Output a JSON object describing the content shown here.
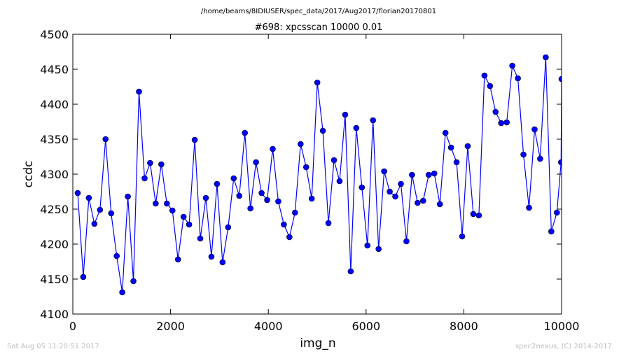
{
  "chart_data": {
    "type": "line",
    "subtitle": "/home/beams/8IDIUSER/spec_data/2017/Aug2017/florian20170801",
    "title": "#698: xpcsscan 10000 0.01",
    "xlabel": "img_n",
    "ylabel": "ccdc",
    "xlim": [
      0,
      10000
    ],
    "ylim": [
      4100,
      4500
    ],
    "xticks": [
      0,
      2000,
      4000,
      6000,
      8000,
      10000
    ],
    "yticks": [
      4100,
      4150,
      4200,
      4250,
      4300,
      4350,
      4400,
      4450,
      4500
    ],
    "grid": false,
    "legend": "none",
    "line_color": "#0000ff",
    "marker_color": "#0000ff",
    "marker": "circle",
    "series": [
      {
        "x": [
          100,
          214,
          328,
          442,
          556,
          670,
          784,
          898,
          1012,
          1126,
          1240,
          1354,
          1468,
          1582,
          1696,
          1810,
          1924,
          2038,
          2152,
          2266,
          2380,
          2494,
          2608,
          2722,
          2836,
          2950,
          3064,
          3178,
          3292,
          3406,
          3520,
          3634,
          3748,
          3862,
          3976,
          4090,
          4204,
          4318,
          4432,
          4546,
          4660,
          4774,
          4888,
          5002,
          5116,
          5230,
          5344,
          5458,
          5572,
          5686,
          5800,
          5914,
          6028,
          6142,
          6256,
          6370,
          6484,
          6598,
          6712,
          6826,
          6940,
          7054,
          7168,
          7282,
          7396,
          7510,
          7624,
          7738,
          7852,
          7966,
          8080,
          8194,
          8308,
          8422,
          8536,
          8650,
          8764,
          8878,
          8992,
          9106,
          9220,
          9334,
          9448,
          9562,
          9676,
          9790,
          9904,
          9990,
          10000
        ],
        "y": [
          4273,
          4153,
          4266,
          4229,
          4249,
          4350,
          4244,
          4183,
          4131,
          4268,
          4147,
          4418,
          4294,
          4316,
          4258,
          4314,
          4258,
          4248,
          4178,
          4239,
          4228,
          4349,
          4208,
          4266,
          4182,
          4286,
          4174,
          4224,
          4294,
          4269,
          4359,
          4251,
          4317,
          4273,
          4263,
          4336,
          4261,
          4228,
          4210,
          4245,
          4343,
          4310,
          4265,
          4431,
          4362,
          4230,
          4320,
          4290,
          4385,
          4161,
          4366,
          4281,
          4198,
          4377,
          4193,
          4304,
          4275,
          4268,
          4286,
          4204,
          4299,
          4259,
          4262,
          4299,
          4301,
          4257,
          4359,
          4338,
          4317,
          4211,
          4340,
          4243,
          4241,
          4441,
          4426,
          4389,
          4373,
          4374,
          4455,
          4437,
          4328,
          4252,
          4364,
          4322,
          4467,
          4218,
          4245,
          4317,
          4436
        ]
      }
    ]
  },
  "footer": {
    "left": "Sat Aug 05 11:20:51 2017",
    "right": "spec2nexus, (C) 2014-2017"
  }
}
